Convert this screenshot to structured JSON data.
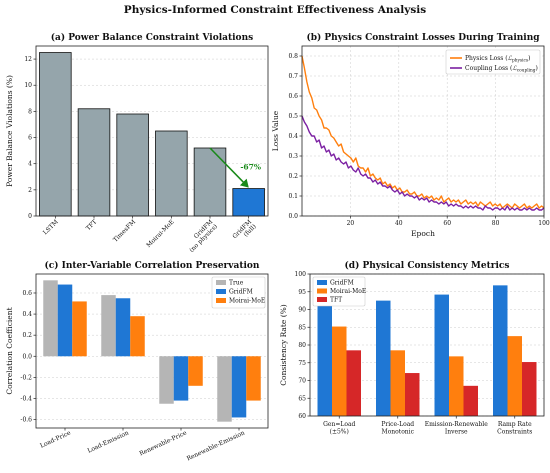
{
  "suptitle": "Physics-Informed Constraint Effectiveness Analysis",
  "colors": {
    "gray_bar": "#95a5ab",
    "blue": "#1f77d4",
    "orange": "#ff7f0e",
    "red": "#d62728",
    "true_gray": "#b5b5b5",
    "purple": "#7b1fa2",
    "green": "#1a8a1a"
  },
  "chart_data": [
    {
      "id": "a",
      "type": "bar",
      "title": "(a) Power Balance Constraint Violations",
      "ylabel": "Power Balance Violations (%)",
      "xlabel": "",
      "categories": [
        "LSTM",
        "TFT",
        "TimesFM",
        "Moirai-MoE",
        "GridFM\n(no physics)",
        "GridFM\n(full)"
      ],
      "values": [
        12.5,
        8.2,
        7.8,
        6.5,
        5.2,
        2.1
      ],
      "ylim": [
        0,
        13
      ],
      "yticks": [
        0,
        2,
        4,
        6,
        8,
        10,
        12
      ],
      "grid": true,
      "annotation": "-67%"
    },
    {
      "id": "b",
      "type": "line",
      "title": "(b) Physics Constraint Losses During Training",
      "xlabel": "Epoch",
      "ylabel": "Loss Value",
      "xlim": [
        0,
        100
      ],
      "ylim": [
        0,
        0.85
      ],
      "xticks": [
        20,
        40,
        60,
        80,
        100
      ],
      "yticks": [
        0.0,
        0.1,
        0.2,
        0.3,
        0.4,
        0.5,
        0.6,
        0.7,
        0.8
      ],
      "grid": true,
      "legend_position": "top-right",
      "series": [
        {
          "name": "Physics Loss (ℒphysics)",
          "name_main": "Physics Loss (",
          "name_sym": "ℒ",
          "name_sub": "physics",
          "values": [
            0.8,
            0.74,
            0.67,
            0.62,
            0.59,
            0.54,
            0.53,
            0.5,
            0.48,
            0.44,
            0.44,
            0.43,
            0.4,
            0.39,
            0.37,
            0.35,
            0.36,
            0.32,
            0.31,
            0.3,
            0.29,
            0.27,
            0.29,
            0.25,
            0.24,
            0.24,
            0.22,
            0.24,
            0.2,
            0.21,
            0.19,
            0.18,
            0.19,
            0.16,
            0.17,
            0.15,
            0.16,
            0.14,
            0.15,
            0.13,
            0.14,
            0.12,
            0.12,
            0.13,
            0.11,
            0.11,
            0.12,
            0.1,
            0.1,
            0.11,
            0.09,
            0.1,
            0.09,
            0.1,
            0.08,
            0.09,
            0.08,
            0.1,
            0.07,
            0.08,
            0.09,
            0.07,
            0.08,
            0.07,
            0.08,
            0.06,
            0.07,
            0.08,
            0.06,
            0.07,
            0.06,
            0.07,
            0.05,
            0.07,
            0.06,
            0.05,
            0.06,
            0.07,
            0.05,
            0.06,
            0.05,
            0.06,
            0.04,
            0.05,
            0.06,
            0.05,
            0.04,
            0.06,
            0.05,
            0.04,
            0.05,
            0.06,
            0.04,
            0.05,
            0.04,
            0.05,
            0.06,
            0.04,
            0.05,
            0.04
          ]
        },
        {
          "name": "Coupling Loss (ℒcoupling)",
          "name_main": "Coupling Loss (",
          "name_sym": "ℒ",
          "name_sub": "coupling",
          "values": [
            0.5,
            0.47,
            0.45,
            0.42,
            0.4,
            0.4,
            0.37,
            0.38,
            0.34,
            0.35,
            0.32,
            0.33,
            0.3,
            0.31,
            0.28,
            0.29,
            0.27,
            0.26,
            0.27,
            0.24,
            0.25,
            0.23,
            0.22,
            0.24,
            0.21,
            0.2,
            0.21,
            0.19,
            0.19,
            0.17,
            0.18,
            0.16,
            0.17,
            0.15,
            0.15,
            0.14,
            0.15,
            0.13,
            0.12,
            0.13,
            0.11,
            0.12,
            0.1,
            0.11,
            0.1,
            0.1,
            0.09,
            0.1,
            0.08,
            0.09,
            0.08,
            0.09,
            0.07,
            0.08,
            0.07,
            0.07,
            0.06,
            0.07,
            0.06,
            0.07,
            0.05,
            0.06,
            0.05,
            0.06,
            0.05,
            0.05,
            0.04,
            0.05,
            0.04,
            0.05,
            0.04,
            0.05,
            0.04,
            0.04,
            0.03,
            0.05,
            0.04,
            0.04,
            0.03,
            0.04,
            0.04,
            0.03,
            0.04,
            0.03,
            0.05,
            0.03,
            0.04,
            0.03,
            0.04,
            0.03,
            0.03,
            0.04,
            0.03,
            0.04,
            0.03,
            0.03,
            0.04,
            0.03,
            0.03,
            0.04
          ]
        }
      ]
    },
    {
      "id": "c",
      "type": "bar",
      "title": "(c) Inter-Variable Correlation Preservation",
      "xlabel": "",
      "ylabel": "Correlation Coefficient",
      "categories": [
        "Load-Price",
        "Load-Emission",
        "Renewable-Price",
        "Renewable-Emission"
      ],
      "series": [
        {
          "name": "True",
          "values": [
            0.72,
            0.58,
            -0.45,
            -0.62
          ]
        },
        {
          "name": "GridFM",
          "values": [
            0.68,
            0.55,
            -0.42,
            -0.58
          ]
        },
        {
          "name": "Moirai-MoE",
          "values": [
            0.52,
            0.38,
            -0.28,
            -0.42
          ]
        }
      ],
      "ylim": [
        -0.68,
        0.78
      ],
      "yticks": [
        -0.6,
        -0.4,
        -0.2,
        0.0,
        0.2,
        0.4,
        0.6
      ],
      "grid": true,
      "legend_position": "top-right"
    },
    {
      "id": "d",
      "type": "bar",
      "title": "(d) Physical Consistency Metrics",
      "xlabel": "",
      "ylabel": "Consistency Rate (%)",
      "categories": [
        "Gen=Load\n(±5%)",
        "Price-Load\nMonotonic",
        "Emission-Renewable\nInverse",
        "Ramp Rate\nConstraints"
      ],
      "series": [
        {
          "name": "GridFM",
          "values": [
            98.0,
            92.5,
            94.2,
            96.8
          ]
        },
        {
          "name": "Moirai-MoE",
          "values": [
            85.2,
            78.5,
            76.8,
            82.5
          ]
        },
        {
          "name": "TFT",
          "values": [
            78.5,
            72.1,
            68.5,
            75.2
          ]
        }
      ],
      "ylim": [
        60,
        100
      ],
      "yticks": [
        60,
        65,
        70,
        75,
        80,
        85,
        90,
        95,
        100
      ],
      "grid": true,
      "legend_position": "top-left"
    }
  ]
}
